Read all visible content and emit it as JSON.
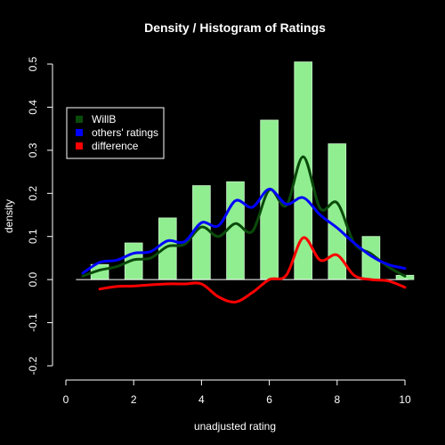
{
  "chart_data": {
    "type": "bar",
    "title": "Density / Histogram of Ratings",
    "xlabel": "unadjusted rating",
    "ylabel": "density",
    "xlim": [
      0,
      10
    ],
    "ylim": [
      -0.2,
      0.5
    ],
    "x_ticks": [
      "0",
      "2",
      "4",
      "6",
      "8",
      "10"
    ],
    "y_ticks": [
      "-0.2",
      "-0.1",
      "0.0",
      "0.1",
      "0.2",
      "0.3",
      "0.4",
      "0.5"
    ],
    "legend_position": "upper-left",
    "histogram": {
      "color": "#90EE90",
      "bins": [
        {
          "x": 1,
          "value": 0.035
        },
        {
          "x": 2,
          "value": 0.085
        },
        {
          "x": 3,
          "value": 0.143
        },
        {
          "x": 4,
          "value": 0.218
        },
        {
          "x": 5,
          "value": 0.227
        },
        {
          "x": 6,
          "value": 0.37
        },
        {
          "x": 7,
          "value": 0.505
        },
        {
          "x": 8,
          "value": 0.315
        },
        {
          "x": 9,
          "value": 0.1
        },
        {
          "x": 10,
          "value": 0.01
        }
      ]
    },
    "series": [
      {
        "name": "WillB",
        "color": "#0a4a0a",
        "x": [
          0.5,
          1,
          1.5,
          2,
          2.5,
          3,
          3.5,
          4,
          4.5,
          5,
          5.5,
          6,
          6.5,
          7,
          7.5,
          8,
          8.5,
          9,
          9.5,
          10
        ],
        "y": [
          0.008,
          0.022,
          0.03,
          0.046,
          0.05,
          0.077,
          0.082,
          0.122,
          0.1,
          0.13,
          0.112,
          0.208,
          0.172,
          0.285,
          0.165,
          0.178,
          0.085,
          0.06,
          0.03,
          0.008
        ]
      },
      {
        "name": "others' ratings",
        "color": "#0000ff",
        "x": [
          0.5,
          1,
          1.5,
          2,
          2.5,
          3,
          3.5,
          4,
          4.5,
          5,
          5.5,
          6,
          6.5,
          7,
          7.5,
          8,
          8.5,
          9,
          9.5,
          10
        ],
        "y": [
          0.015,
          0.04,
          0.045,
          0.061,
          0.065,
          0.09,
          0.088,
          0.132,
          0.125,
          0.183,
          0.168,
          0.21,
          0.175,
          0.19,
          0.15,
          0.12,
          0.085,
          0.055,
          0.035,
          0.026
        ]
      },
      {
        "name": "difference",
        "color": "#ff0000",
        "x": [
          1,
          1.5,
          2,
          2.5,
          3,
          3.5,
          4,
          4.5,
          5,
          5.5,
          6,
          6.5,
          7,
          7.5,
          8,
          8.5,
          9,
          9.5,
          10
        ],
        "y": [
          -0.022,
          -0.016,
          -0.015,
          -0.012,
          -0.01,
          -0.01,
          -0.01,
          -0.04,
          -0.052,
          -0.03,
          0.0,
          0.01,
          0.097,
          0.045,
          0.057,
          0.01,
          0.0,
          -0.003,
          -0.018
        ]
      }
    ]
  }
}
